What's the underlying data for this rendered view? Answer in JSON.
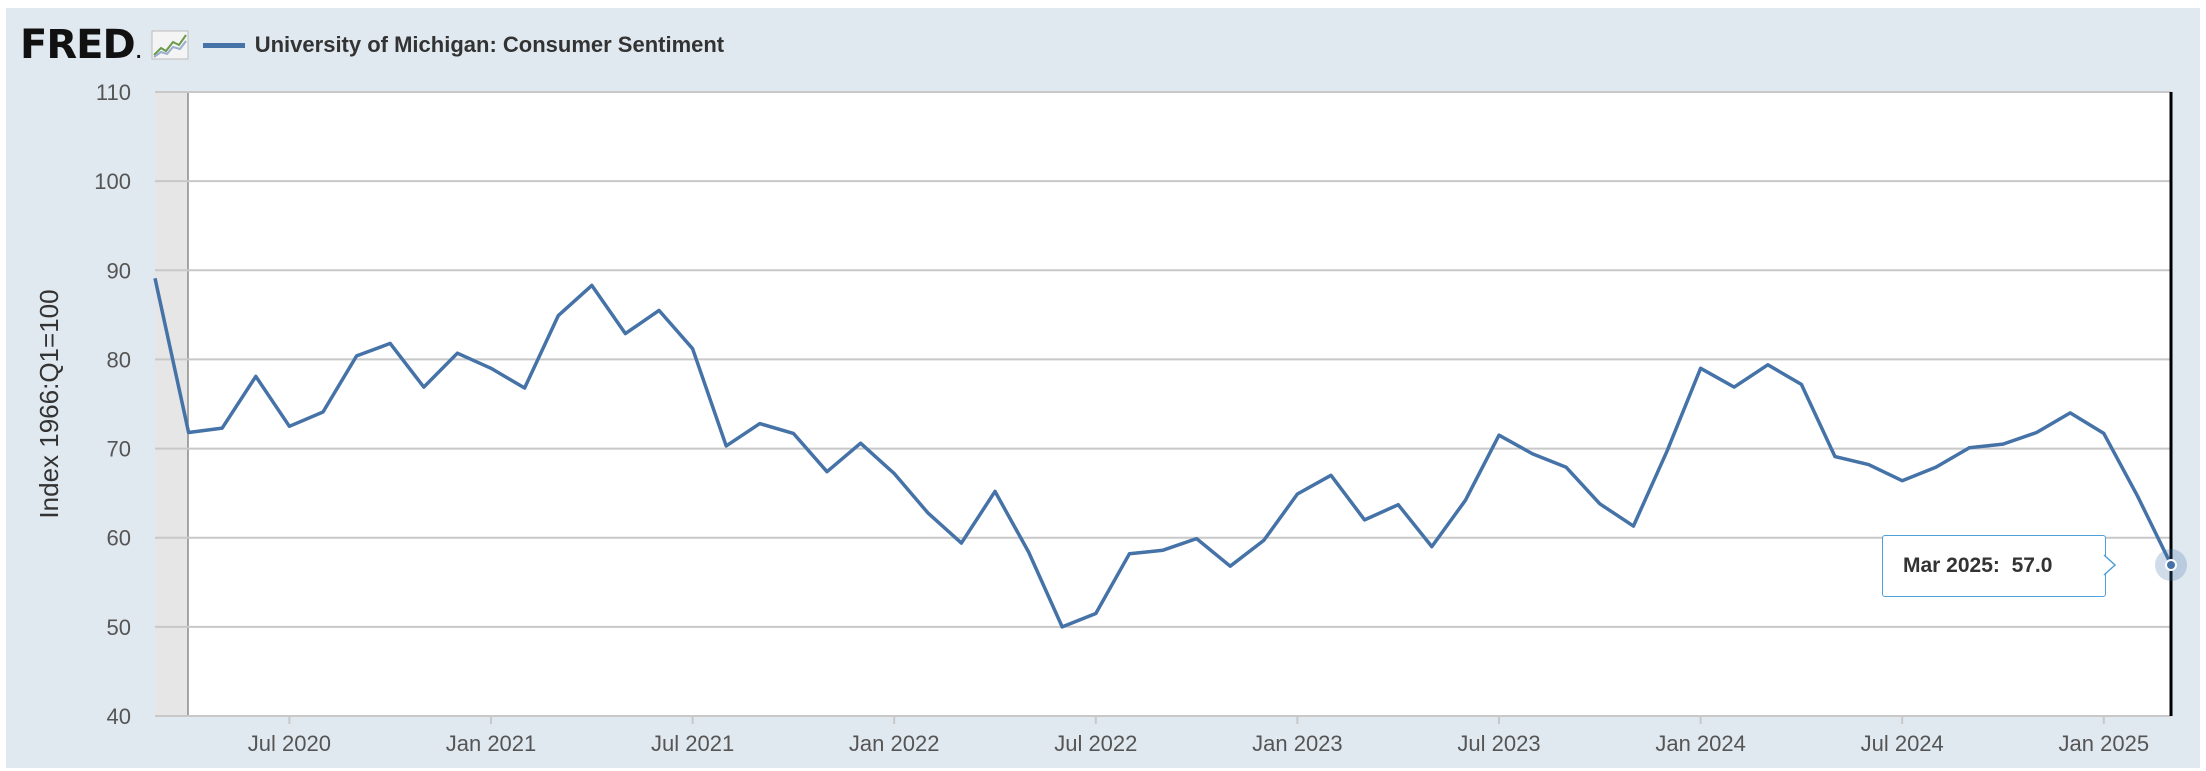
{
  "header": {
    "logo_text": "FRED",
    "logo_icon": "chart-line-icon",
    "series_label": "University of Michigan: Consumer Sentiment"
  },
  "colors": {
    "series": "#4572a7",
    "background": "#e1e9f0",
    "plot": "#ffffff",
    "grid": "#c8c8c8",
    "tooltip_border": "#4f9fd8"
  },
  "chart_data": {
    "type": "line",
    "ylabel": "Index 1966:Q1=100",
    "ylim": [
      40,
      110
    ],
    "yticks": [
      40,
      50,
      60,
      70,
      80,
      90,
      100,
      110
    ],
    "xticks": [
      {
        "label": "Jul 2020",
        "date": "2020-07"
      },
      {
        "label": "Jan 2021",
        "date": "2021-01"
      },
      {
        "label": "Jul 2021",
        "date": "2021-07"
      },
      {
        "label": "Jan 2022",
        "date": "2022-01"
      },
      {
        "label": "Jul 2022",
        "date": "2022-07"
      },
      {
        "label": "Jan 2023",
        "date": "2023-01"
      },
      {
        "label": "Jul 2023",
        "date": "2023-07"
      },
      {
        "label": "Jan 2024",
        "date": "2024-01"
      },
      {
        "label": "Jul 2024",
        "date": "2024-07"
      },
      {
        "label": "Jan 2025",
        "date": "2025-01"
      }
    ],
    "grid": true,
    "series": [
      {
        "x": [
          "2020-03",
          "2020-04",
          "2020-05",
          "2020-06",
          "2020-07",
          "2020-08",
          "2020-09",
          "2020-10",
          "2020-11",
          "2020-12",
          "2021-01",
          "2021-02",
          "2021-03",
          "2021-04",
          "2021-05",
          "2021-06",
          "2021-07",
          "2021-08",
          "2021-09",
          "2021-10",
          "2021-11",
          "2021-12",
          "2022-01",
          "2022-02",
          "2022-03",
          "2022-04",
          "2022-05",
          "2022-06",
          "2022-07",
          "2022-08",
          "2022-09",
          "2022-10",
          "2022-11",
          "2022-12",
          "2023-01",
          "2023-02",
          "2023-03",
          "2023-04",
          "2023-05",
          "2023-06",
          "2023-07",
          "2023-08",
          "2023-09",
          "2023-10",
          "2023-11",
          "2023-12",
          "2024-01",
          "2024-02",
          "2024-03",
          "2024-04",
          "2024-05",
          "2024-06",
          "2024-07",
          "2024-08",
          "2024-09",
          "2024-10",
          "2024-11",
          "2024-12",
          "2025-01",
          "2025-02",
          "2025-03"
        ],
        "values": [
          89.1,
          71.8,
          72.3,
          78.1,
          72.5,
          74.1,
          80.4,
          81.8,
          76.9,
          80.7,
          79.0,
          76.8,
          84.9,
          88.3,
          82.9,
          85.5,
          81.2,
          70.3,
          72.8,
          71.7,
          67.4,
          70.6,
          67.2,
          62.8,
          59.4,
          65.2,
          58.4,
          50.0,
          51.5,
          58.2,
          58.6,
          59.9,
          56.8,
          59.7,
          64.9,
          67.0,
          62.0,
          63.7,
          59.0,
          64.2,
          71.5,
          69.4,
          67.9,
          63.8,
          61.3,
          69.7,
          79.0,
          76.9,
          79.4,
          77.2,
          69.1,
          68.2,
          66.4,
          67.9,
          70.1,
          70.5,
          71.8,
          74.0,
          71.7,
          64.7,
          57.0
        ]
      }
    ]
  },
  "tooltip": {
    "date": "Mar 2025:",
    "value": "57.0"
  }
}
